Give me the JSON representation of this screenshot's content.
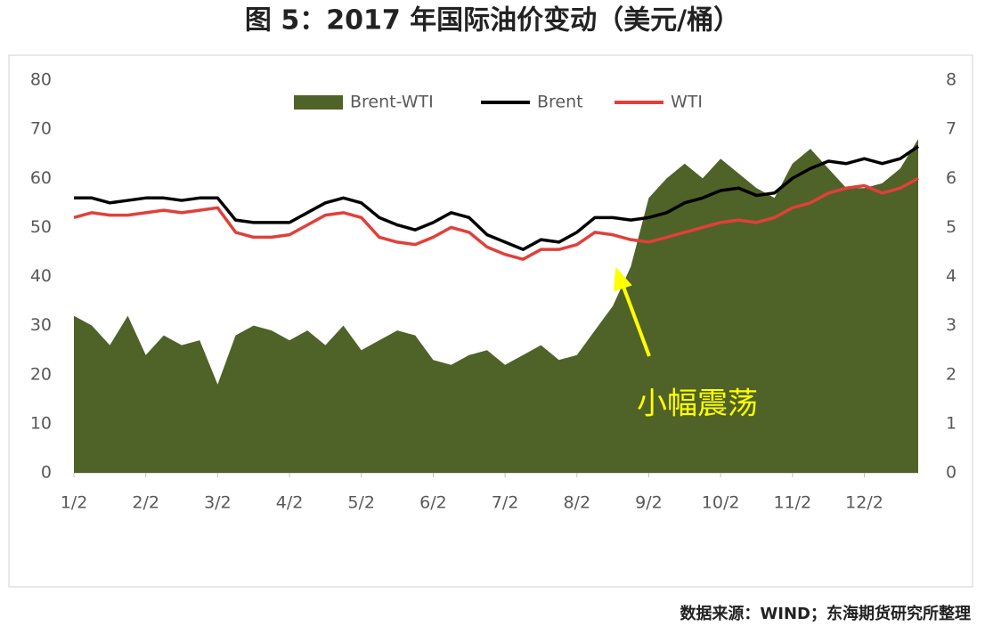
{
  "chart_data": {
    "type": "combo",
    "title": "图 5：2017 年国际油价变动（美元/桶）",
    "source": "数据来源：WIND；东海期货研究所整理",
    "annotation": "小幅震荡",
    "categories": [
      "1/2",
      null,
      null,
      null,
      "2/2",
      null,
      null,
      null,
      "3/2",
      null,
      null,
      null,
      "4/2",
      null,
      null,
      null,
      "5/2",
      null,
      null,
      null,
      "6/2",
      null,
      null,
      null,
      "7/2",
      null,
      null,
      null,
      "8/2",
      null,
      null,
      null,
      "9/2",
      null,
      null,
      null,
      "10/2",
      null,
      null,
      null,
      "11/2",
      null,
      null,
      null,
      "12/2",
      null,
      null,
      null
    ],
    "ylim": [
      0,
      80
    ],
    "yticks": [
      0,
      10,
      20,
      30,
      40,
      50,
      60,
      70,
      80
    ],
    "y2lim": [
      0,
      8
    ],
    "y2ticks": [
      0,
      1,
      2,
      3,
      4,
      5,
      6,
      7,
      8
    ],
    "legend": "top",
    "series": [
      {
        "name": "Brent-WTI",
        "kind": "area",
        "axis": "y2",
        "color": "#4f6228",
        "values": [
          3.2,
          3.0,
          2.6,
          3.2,
          2.4,
          2.8,
          2.6,
          2.7,
          1.8,
          2.8,
          3.0,
          2.9,
          2.7,
          2.9,
          2.6,
          3.0,
          2.5,
          2.7,
          2.9,
          2.8,
          2.3,
          2.2,
          2.4,
          2.5,
          2.2,
          2.4,
          2.6,
          2.3,
          2.4,
          2.9,
          3.4,
          4.2,
          5.6,
          6.0,
          6.3,
          6.0,
          6.4,
          6.1,
          5.8,
          5.6,
          6.3,
          6.6,
          6.2,
          5.8,
          5.8,
          5.9,
          6.2,
          6.8
        ]
      },
      {
        "name": "Brent",
        "kind": "line",
        "color": "#000000",
        "values": [
          56,
          56,
          55,
          55.5,
          56,
          56,
          55.5,
          56,
          56,
          51.5,
          51,
          51,
          51,
          53,
          55,
          56,
          55,
          52,
          50.5,
          49.5,
          51,
          53,
          52,
          48.5,
          47,
          45.5,
          47.5,
          47,
          49,
          52,
          52,
          51.5,
          52,
          53,
          55,
          56,
          57.5,
          58,
          56.5,
          57,
          60,
          62,
          63.5,
          63,
          64,
          63,
          64,
          66.5
        ]
      },
      {
        "name": "WTI",
        "kind": "line",
        "color": "#e0403a",
        "values": [
          52,
          53,
          52.5,
          52.5,
          53,
          53.5,
          53,
          53.5,
          54,
          49,
          48,
          48,
          48.5,
          50.5,
          52.5,
          53,
          52,
          48,
          47,
          46.5,
          48,
          50,
          49,
          46,
          44.5,
          43.5,
          45.5,
          45.5,
          46.5,
          49,
          48.5,
          47.5,
          47,
          48,
          49,
          50,
          51,
          51.5,
          51,
          52,
          54,
          55,
          57,
          58,
          58.5,
          57,
          58,
          60
        ]
      }
    ]
  }
}
